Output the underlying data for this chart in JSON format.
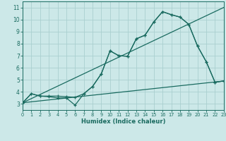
{
  "xlabel": "Humidex (Indice chaleur)",
  "xlim": [
    0,
    23
  ],
  "ylim": [
    2.5,
    11.5
  ],
  "xticks": [
    0,
    1,
    2,
    3,
    4,
    5,
    6,
    7,
    8,
    9,
    10,
    11,
    12,
    13,
    14,
    15,
    16,
    17,
    18,
    19,
    20,
    21,
    22,
    23
  ],
  "yticks": [
    3,
    4,
    5,
    6,
    7,
    8,
    9,
    10,
    11
  ],
  "background_color": "#cce8e8",
  "grid_color": "#aacfcf",
  "line_color": "#1a6b60",
  "line1": {
    "x": [
      0,
      1,
      2,
      3,
      4,
      5,
      6,
      7,
      8,
      9,
      10,
      11,
      12,
      13,
      14,
      15,
      16,
      17,
      18,
      19,
      20,
      21,
      22,
      23
    ],
    "y": [
      3.1,
      3.85,
      3.65,
      3.65,
      3.65,
      3.6,
      3.55,
      3.85,
      4.45,
      5.5,
      7.4,
      7.0,
      6.95,
      8.4,
      8.7,
      9.8,
      10.65,
      10.4,
      10.2,
      9.6,
      7.8,
      6.5,
      4.8,
      4.9
    ]
  },
  "line2": {
    "x": [
      0,
      1,
      2,
      3,
      4,
      5,
      6,
      7,
      8,
      9,
      10,
      11,
      12,
      13,
      14,
      15,
      16,
      17,
      18,
      19,
      20,
      21,
      22,
      23
    ],
    "y": [
      3.1,
      3.85,
      3.65,
      3.6,
      3.5,
      3.5,
      2.9,
      3.85,
      4.45,
      5.5,
      7.4,
      7.0,
      6.95,
      8.4,
      8.7,
      9.8,
      10.65,
      10.4,
      10.2,
      9.6,
      7.8,
      6.5,
      4.8,
      4.9
    ]
  },
  "line3": {
    "x": [
      0,
      23
    ],
    "y": [
      3.1,
      4.9
    ]
  },
  "line4": {
    "x": [
      0,
      23
    ],
    "y": [
      3.1,
      11.0
    ]
  }
}
